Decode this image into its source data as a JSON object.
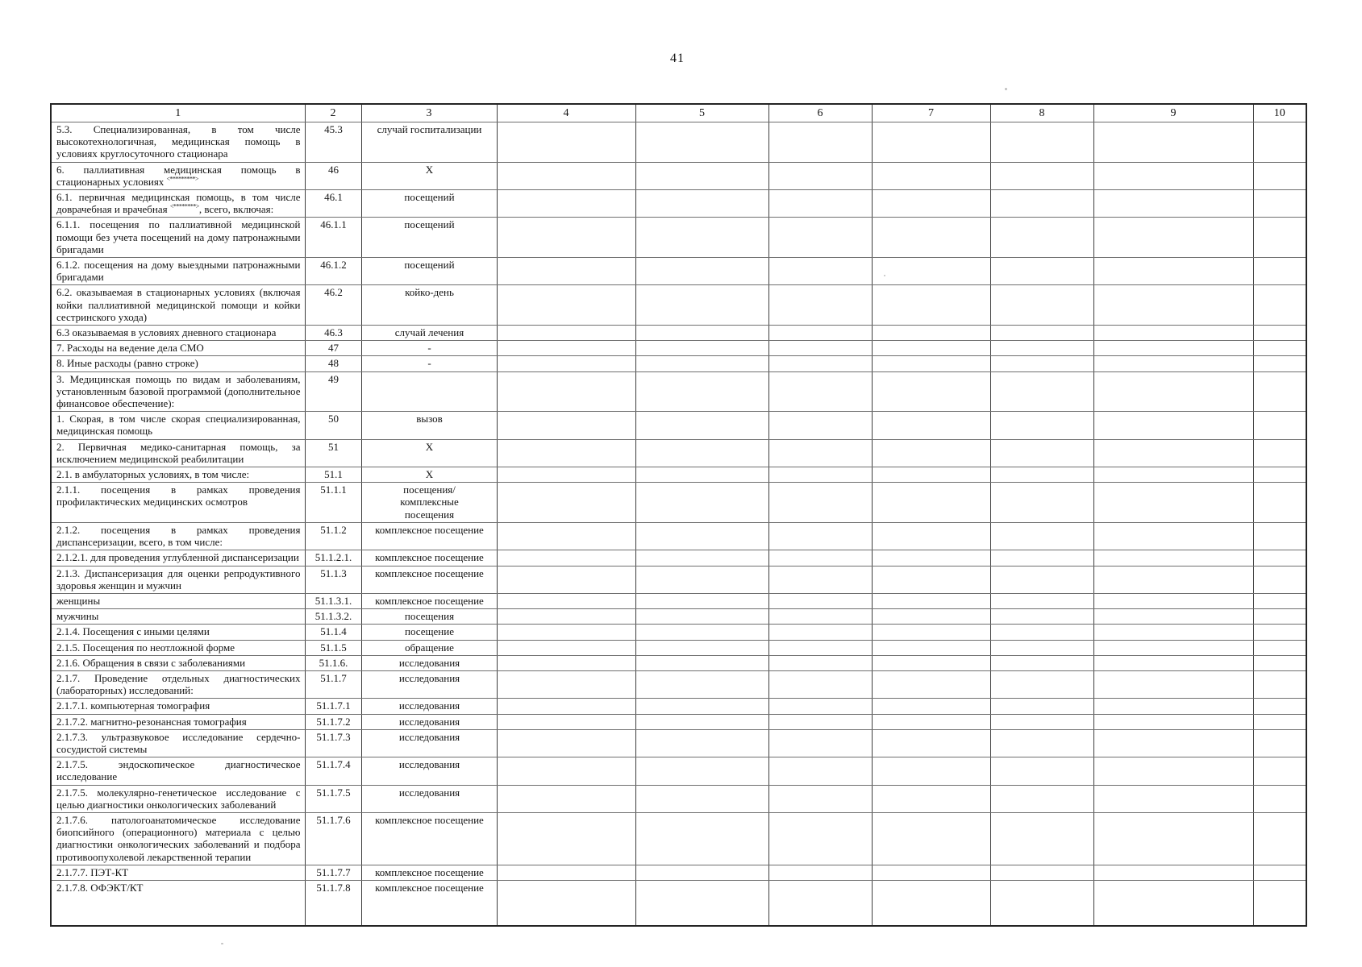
{
  "page": {
    "number": "41"
  },
  "table": {
    "header": [
      "1",
      "2",
      "3",
      "4",
      "5",
      "6",
      "7",
      "8",
      "9",
      "10"
    ],
    "rows": [
      {
        "label": "5.3. Специализированная, в том числе высокотехнологичная, медицинская помощь в условиях круглосуточного стационара",
        "code": "45.3",
        "unit": "случай госпитализации"
      },
      {
        "label": "6. паллиативная медицинская помощь в стационарных условиях",
        "sup": "<*********>",
        "code": "46",
        "unit": "Х"
      },
      {
        "label": "6.1. первичная медицинская помощь, в том числе доврачебная и врачебная",
        "sup": "<********>",
        "after": ", всего, включая:",
        "code": "46.1",
        "unit": "посещений"
      },
      {
        "label": "6.1.1. посещения по паллиативной медицинской помощи без учета посещений на дому патронажными бригадами",
        "code": "46.1.1",
        "unit": "посещений"
      },
      {
        "label": "6.1.2. посещения на дому выездными патронажными бригадами",
        "code": "46.1.2",
        "unit": "посещений"
      },
      {
        "label": "6.2. оказываемая в стационарных условиях (включая койки паллиативной медицинской помощи и койки сестринского ухода)",
        "code": "46.2",
        "unit": "койко-день"
      },
      {
        "label": "6.3 оказываемая в условиях дневного стационара",
        "code": "46.3",
        "unit": "случай лечения"
      },
      {
        "label": "7. Расходы на ведение дела СМО",
        "code": "47",
        "unit": "-"
      },
      {
        "label": "8. Иные расходы (равно строке)",
        "code": "48",
        "unit": "-"
      },
      {
        "label": "3. Медицинская помощь по видам и заболеваниям, установленным базовой программой (дополнительное финансовое обеспечение):",
        "code": "49",
        "unit": ""
      },
      {
        "label": "1. Скорая, в том числе скорая специализированная, медицинская помощь",
        "code": "50",
        "unit": "вызов"
      },
      {
        "label": "2. Первичная медико-санитарная помощь, за исключением медицинской реабилитации",
        "code": "51",
        "unit": "Х"
      },
      {
        "label": "2.1. в амбулаторных условиях, в том числе:",
        "code": "51.1",
        "unit": "Х"
      },
      {
        "label": "2.1.1. посещения в рамках проведения профилактических медицинских осмотров",
        "code": "51.1.1",
        "unit": "посещения/\nкомплексные\nпосещения"
      },
      {
        "label": "2.1.2. посещения в рамках проведения диспансеризации, всего, в том числе:",
        "code": "51.1.2",
        "unit": "комплексное посещение"
      },
      {
        "label": "2.1.2.1. для проведения углубленной диспансеризации",
        "code": "51.1.2.1.",
        "unit": "комплексное посещение"
      },
      {
        "label": "2.1.3. Диспансеризация для оценки репродуктивного здоровья женщин и мужчин",
        "code": "51.1.3",
        "unit": "комплексное посещение"
      },
      {
        "label": "женщины",
        "code": "51.1.3.1.",
        "unit": "комплексное посещение"
      },
      {
        "label": "мужчины",
        "code": "51.1.3.2.",
        "unit": "посещения"
      },
      {
        "label": "2.1.4. Посещения с иными целями",
        "code": "51.1.4",
        "unit": "посещение"
      },
      {
        "label": "2.1.5. Посещения по неотложной форме",
        "code": "51.1.5",
        "unit": "обращение"
      },
      {
        "label": "2.1.6. Обращения в связи с заболеваниями",
        "code": "51.1.6.",
        "unit": "исследования"
      },
      {
        "label": "2.1.7. Проведение отдельных диагностических (лабораторных) исследований:",
        "code": "51.1.7",
        "unit": "исследования"
      },
      {
        "label": "2.1.7.1. компьютерная томография",
        "code": "51.1.7.1",
        "unit": "исследования"
      },
      {
        "label": "2.1.7.2. магнитно-резонансная томография",
        "code": "51.1.7.2",
        "unit": "исследования"
      },
      {
        "label": "2.1.7.3. ультразвуковое исследование сердечно-сосудистой системы",
        "code": "51.1.7.3",
        "unit": "исследования"
      },
      {
        "label": "2.1.7.5. эндоскопическое диагностическое исследование",
        "code": "51.1.7.4",
        "unit": "исследования"
      },
      {
        "label": "2.1.7.5. молекулярно-генетическое исследование с целью диагностики онкологических заболеваний",
        "code": "51.1.7.5",
        "unit": "исследования"
      },
      {
        "label": "2.1.7.6. патологоанатомическое исследование биопсийного (операционного) материала с целью диагностики онкологических заболеваний и подбора противоопухолевой лекарственной терапии",
        "code": "51.1.7.6",
        "unit": "комплексное посещение"
      },
      {
        "label": "2.1.7.7. ПЭТ-КТ",
        "code": "51.1.7.7",
        "unit": "комплексное посещение"
      },
      {
        "label": "2.1.7.8. ОФЭКТ/КТ",
        "code": "51.1.7.8",
        "unit": "комплексное посещение"
      }
    ]
  }
}
